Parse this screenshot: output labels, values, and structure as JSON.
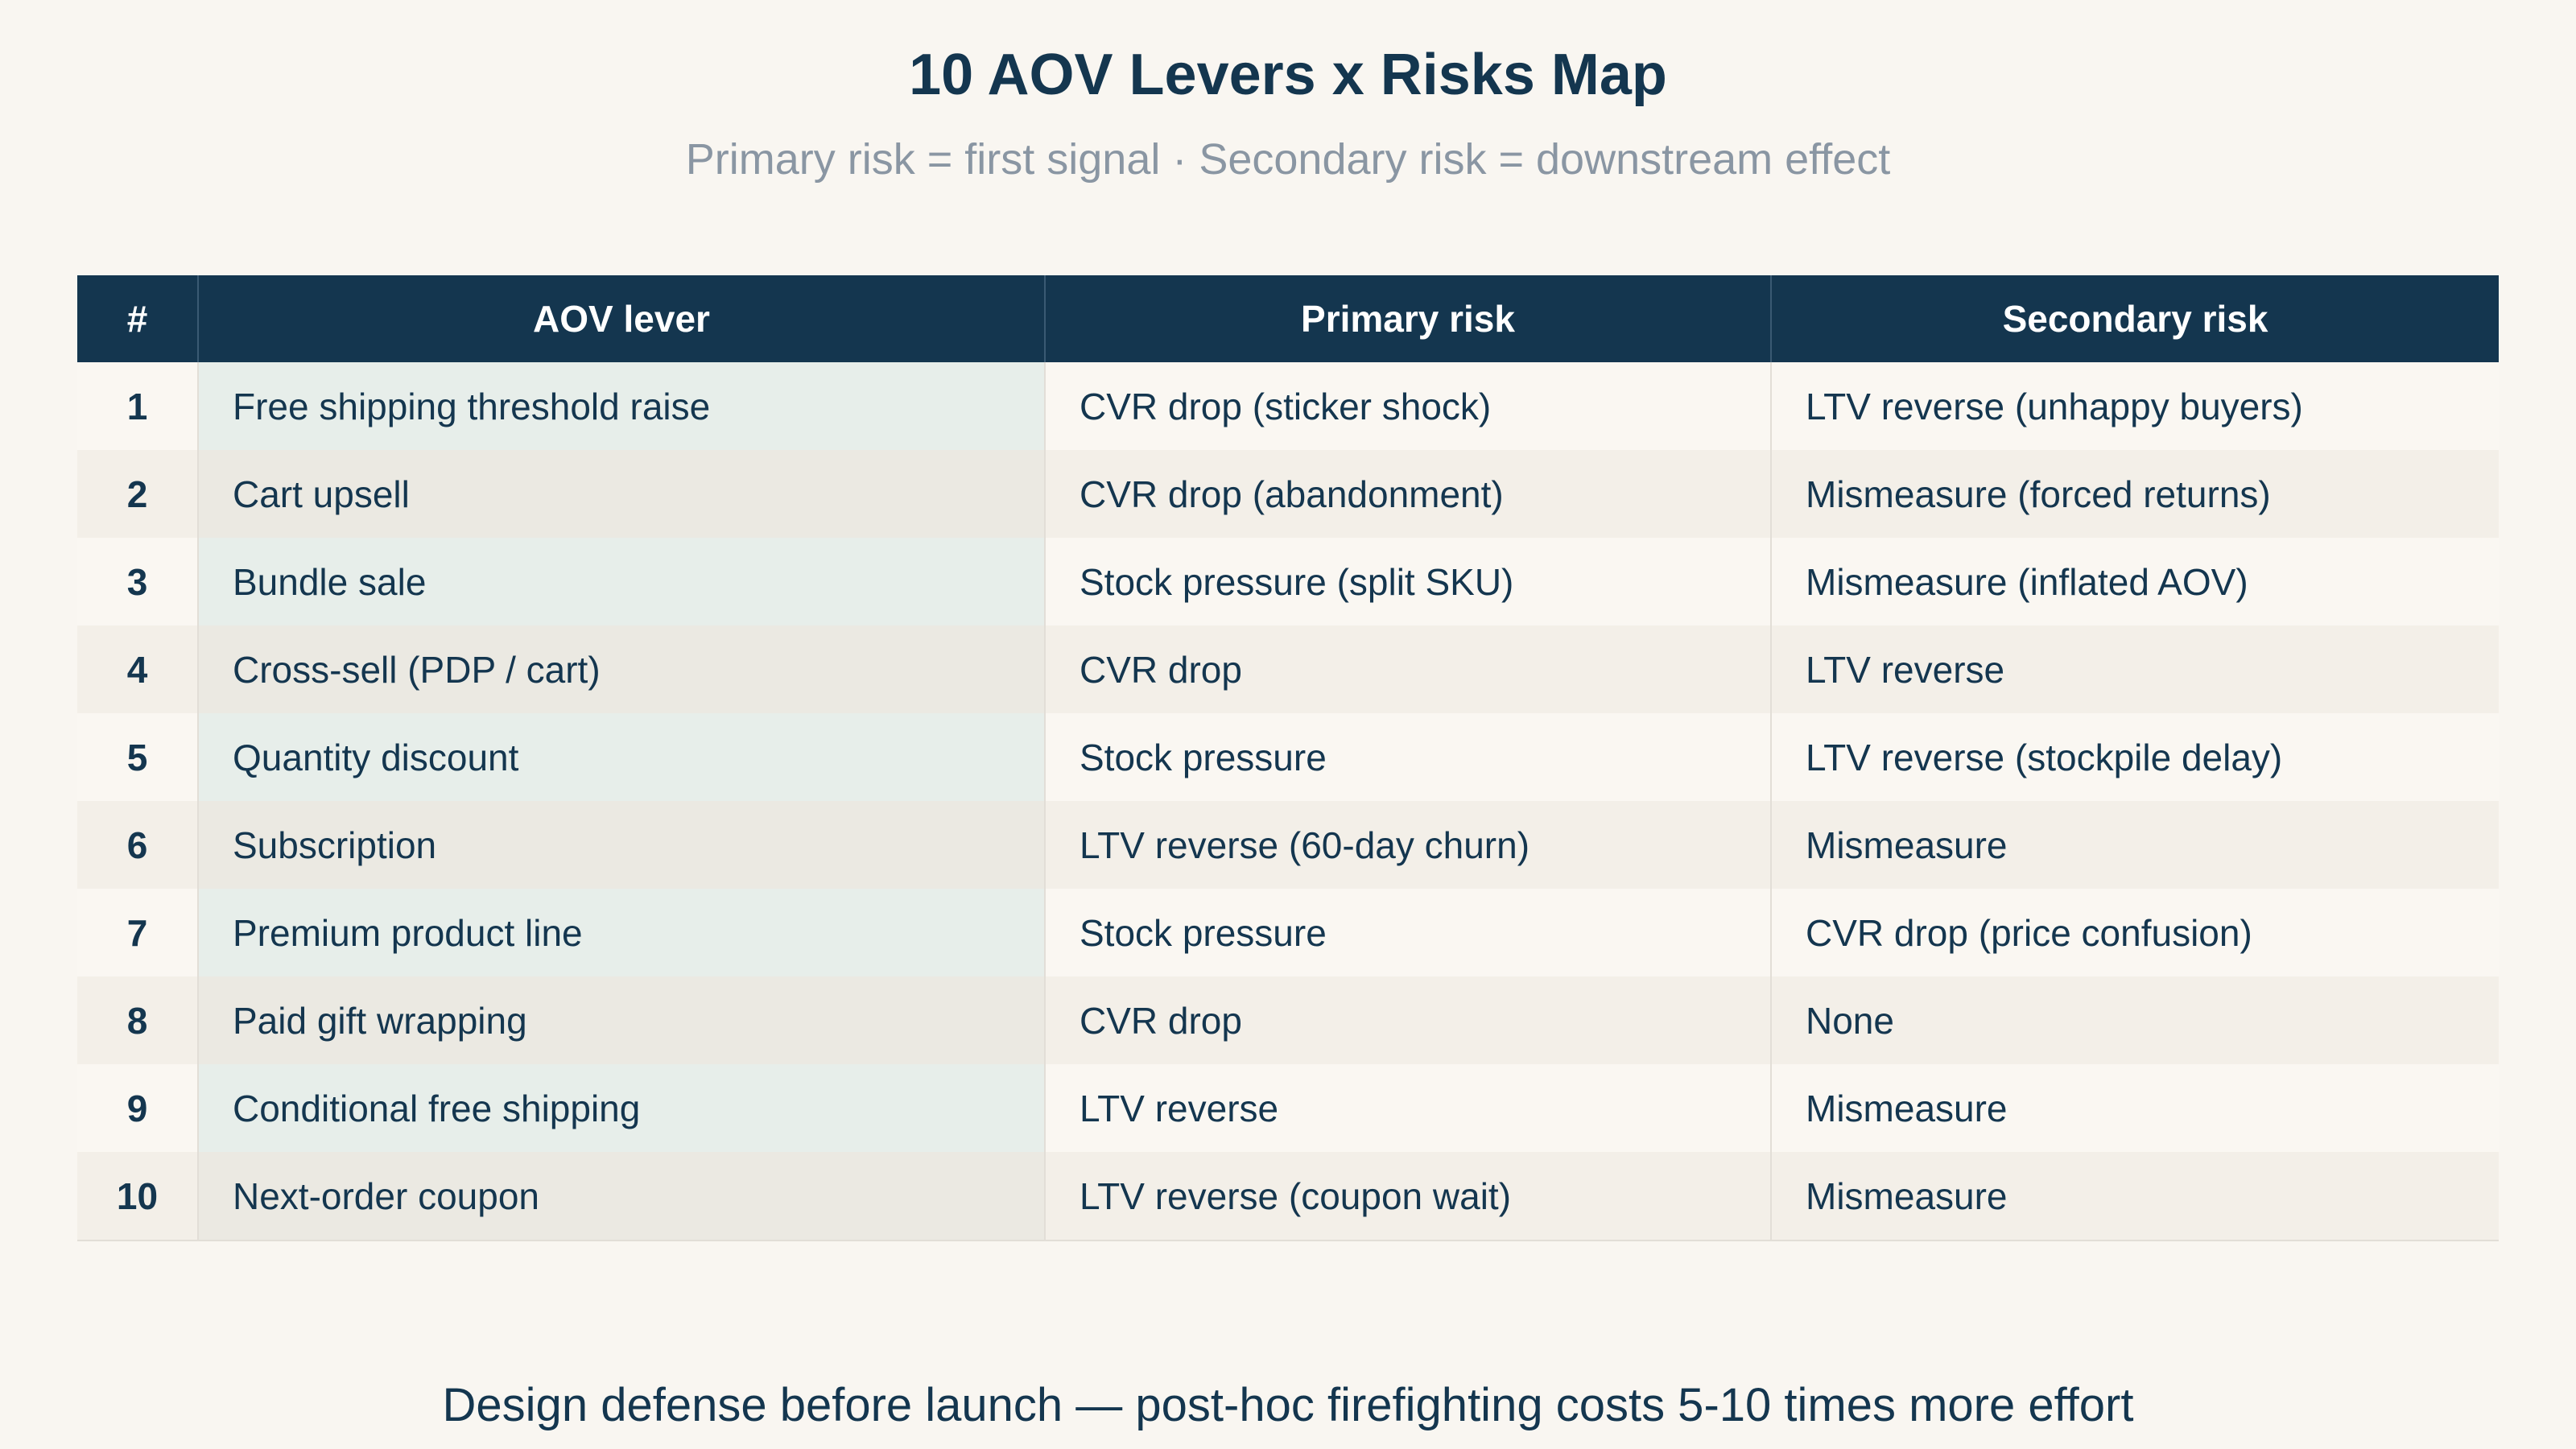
{
  "title": "10 AOV Levers x Risks Map",
  "subtitle": "Primary risk = first signal · Secondary risk = downstream effect",
  "table": {
    "headers": [
      "#",
      "AOV lever",
      "Primary risk",
      "Secondary risk"
    ],
    "rows": [
      {
        "num": "1",
        "lever": "Free shipping threshold raise",
        "primary": "CVR drop (sticker shock)",
        "secondary": "LTV reverse (unhappy buyers)"
      },
      {
        "num": "2",
        "lever": "Cart upsell",
        "primary": "CVR drop (abandonment)",
        "secondary": "Mismeasure (forced returns)"
      },
      {
        "num": "3",
        "lever": "Bundle sale",
        "primary": "Stock pressure (split SKU)",
        "secondary": "Mismeasure (inflated AOV)"
      },
      {
        "num": "4",
        "lever": "Cross-sell (PDP / cart)",
        "primary": "CVR drop",
        "secondary": "LTV reverse"
      },
      {
        "num": "5",
        "lever": "Quantity discount",
        "primary": "Stock pressure",
        "secondary": "LTV reverse (stockpile delay)"
      },
      {
        "num": "6",
        "lever": "Subscription",
        "primary": "LTV reverse (60-day churn)",
        "secondary": "Mismeasure"
      },
      {
        "num": "7",
        "lever": "Premium product line",
        "primary": "Stock pressure",
        "secondary": "CVR drop (price confusion)"
      },
      {
        "num": "8",
        "lever": "Paid gift wrapping",
        "primary": "CVR drop",
        "secondary": "None"
      },
      {
        "num": "9",
        "lever": "Conditional free shipping",
        "primary": "LTV reverse",
        "secondary": "Mismeasure"
      },
      {
        "num": "10",
        "lever": "Next-order coupon",
        "primary": "LTV reverse (coupon wait)",
        "secondary": "Mismeasure"
      }
    ]
  },
  "footer": "Design defense before launch — post-hoc firefighting costs 5-10 times more effort"
}
